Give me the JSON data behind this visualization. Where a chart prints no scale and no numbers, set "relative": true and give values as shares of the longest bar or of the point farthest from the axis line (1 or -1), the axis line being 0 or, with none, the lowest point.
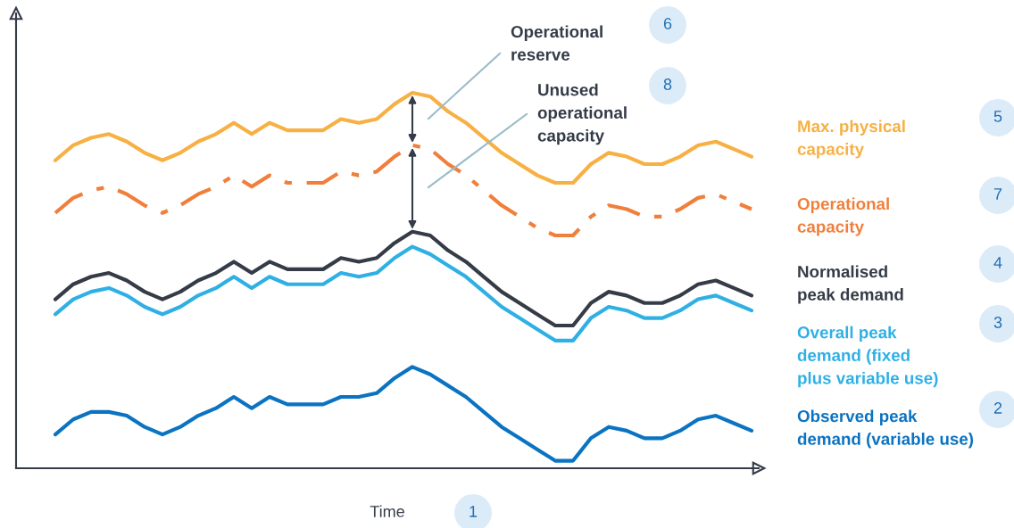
{
  "chart_data": {
    "type": "line",
    "relative": true,
    "xlabel": "Time",
    "categories": [
      null,
      null,
      null,
      null,
      null,
      null,
      null,
      null,
      null,
      null,
      null,
      null,
      null,
      null,
      null,
      null,
      null,
      null,
      null,
      null,
      null,
      null,
      null,
      null,
      null,
      null,
      null,
      null,
      null,
      null,
      null,
      null,
      null,
      null,
      null,
      null,
      null,
      null,
      null,
      null
    ],
    "series": [
      {
        "name": "Observed peak\ndemand (variable use)",
        "color": "#0a73c2",
        "line_style": "solid",
        "values": [
          0.09,
          0.13,
          0.15,
          0.15,
          0.14,
          0.11,
          0.09,
          0.11,
          0.14,
          0.16,
          0.19,
          0.16,
          0.19,
          0.17,
          0.17,
          0.17,
          0.19,
          0.19,
          0.2,
          0.24,
          0.27,
          0.25,
          0.22,
          0.19,
          0.15,
          0.11,
          0.08,
          0.05,
          0.02,
          0.02,
          0.08,
          0.11,
          0.1,
          0.08,
          0.08,
          0.1,
          0.13,
          0.14,
          0.12,
          0.1
        ]
      },
      {
        "name": "Overall peak\ndemand (fixed\nplus variable use)",
        "color": "#2fb0e5",
        "line_style": "solid",
        "values": [
          0.41,
          0.45,
          0.47,
          0.48,
          0.46,
          0.43,
          0.41,
          0.43,
          0.46,
          0.48,
          0.51,
          0.48,
          0.51,
          0.49,
          0.49,
          0.49,
          0.52,
          0.51,
          0.52,
          0.56,
          0.59,
          0.57,
          0.54,
          0.51,
          0.47,
          0.43,
          0.4,
          0.37,
          0.34,
          0.34,
          0.4,
          0.43,
          0.42,
          0.4,
          0.4,
          0.42,
          0.45,
          0.46,
          0.44,
          0.42
        ]
      },
      {
        "name": "Normalised\npeak demand",
        "color": "#353c48",
        "line_style": "solid",
        "values": [
          0.45,
          0.49,
          0.51,
          0.52,
          0.5,
          0.47,
          0.45,
          0.47,
          0.5,
          0.52,
          0.55,
          0.52,
          0.55,
          0.53,
          0.53,
          0.53,
          0.56,
          0.55,
          0.56,
          0.6,
          0.63,
          0.62,
          0.58,
          0.55,
          0.51,
          0.47,
          0.44,
          0.41,
          0.38,
          0.38,
          0.44,
          0.47,
          0.46,
          0.44,
          0.44,
          0.46,
          0.49,
          0.5,
          0.48,
          0.46
        ]
      },
      {
        "name": "Operational\ncapacity",
        "color": "#f07f3c",
        "line_style": "dashed",
        "values": [
          0.68,
          0.72,
          0.74,
          0.75,
          0.73,
          0.7,
          0.68,
          0.7,
          0.73,
          0.75,
          0.78,
          0.75,
          0.78,
          0.76,
          0.76,
          0.76,
          0.79,
          0.78,
          0.79,
          0.83,
          0.86,
          0.85,
          0.81,
          0.78,
          0.74,
          0.7,
          0.67,
          0.64,
          0.62,
          0.62,
          0.67,
          0.7,
          0.69,
          0.67,
          0.67,
          0.69,
          0.72,
          0.73,
          0.71,
          0.69
        ]
      },
      {
        "name": "Max. physical\ncapacity",
        "color": "#f7b043",
        "line_style": "solid",
        "values": [
          0.82,
          0.86,
          0.88,
          0.89,
          0.87,
          0.84,
          0.82,
          0.84,
          0.87,
          0.89,
          0.92,
          0.89,
          0.92,
          0.9,
          0.9,
          0.9,
          0.93,
          0.92,
          0.93,
          0.97,
          1.0,
          0.99,
          0.95,
          0.92,
          0.88,
          0.84,
          0.81,
          0.78,
          0.76,
          0.76,
          0.81,
          0.84,
          0.83,
          0.81,
          0.81,
          0.83,
          0.86,
          0.87,
          0.85,
          0.83
        ]
      }
    ],
    "annotations": [
      "Operational\nreserve",
      "6",
      "Unused\noperational\ncapacity",
      "8",
      "2",
      "3",
      "4",
      "7",
      "5",
      "1"
    ]
  }
}
